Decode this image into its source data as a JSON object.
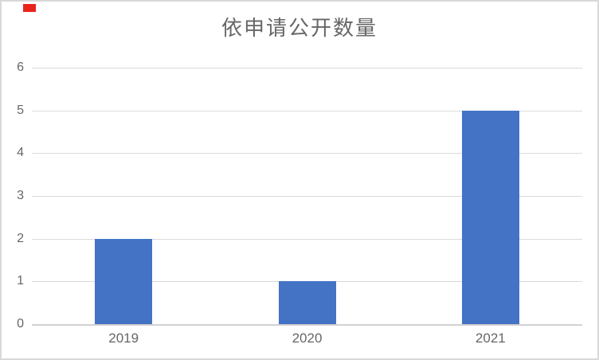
{
  "chart_data": {
    "type": "bar",
    "title": "依申请公开数量",
    "categories": [
      "2019",
      "2020",
      "2021"
    ],
    "values": [
      2,
      1,
      5
    ],
    "xlabel": "",
    "ylabel": "",
    "ylim": [
      0,
      6
    ],
    "yticks": [
      0,
      1,
      2,
      3,
      4,
      5,
      6
    ],
    "grid": "horizontal",
    "legend": "none",
    "colors": {
      "bar": "#4472C4",
      "gridline": "#DADADA",
      "axis_line": "#D2D2D2",
      "tick_label": "#666666",
      "title": "#666666",
      "frame_border": "#D8D8D8",
      "red_marker": "#E8251C"
    }
  }
}
